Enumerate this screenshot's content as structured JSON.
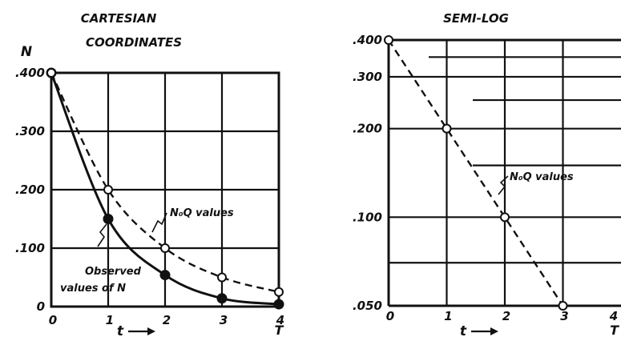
{
  "chart_data": [
    {
      "type": "line",
      "title": "CARTESIAN\nCOORDINATES",
      "xlabel": "t",
      "ylabel": "N",
      "xlim": [
        0,
        4
      ],
      "ylim": [
        0,
        0.4
      ],
      "x_ticks": [
        0,
        1,
        2,
        3,
        4
      ],
      "x_tick_labels": [
        "0",
        "1",
        "2",
        "3",
        "4"
      ],
      "y_ticks": [
        0,
        0.1,
        0.2,
        0.3,
        0.4
      ],
      "y_tick_labels": [
        "0",
        ".100",
        ".200",
        ".300",
        ".400"
      ],
      "x_extra_label": "T",
      "grid": true,
      "series": [
        {
          "name": "Observed values of N",
          "style": "solid",
          "marker": "filled",
          "x": [
            0,
            1,
            2,
            3,
            4
          ],
          "y": [
            0.4,
            0.15,
            0.054,
            0.014,
            0.004
          ]
        },
        {
          "name": "NoQ values",
          "style": "dashed",
          "marker": "open",
          "x": [
            0,
            1,
            2,
            3,
            4
          ],
          "y": [
            0.4,
            0.2,
            0.1,
            0.05,
            0.025
          ]
        }
      ],
      "annotations": [
        {
          "text": "N₀Q values"
        },
        {
          "text": "Observed\nvalues of N"
        }
      ]
    },
    {
      "type": "line",
      "title": "SEMI-LOG",
      "xlabel": "t",
      "ylabel": "",
      "xlim": [
        0,
        4
      ],
      "ylim": [
        0.05,
        0.4
      ],
      "yscale": "log",
      "x_ticks": [
        0,
        1,
        2,
        3,
        4
      ],
      "x_tick_labels": [
        "0",
        "1",
        "2",
        "3",
        "4"
      ],
      "y_ticks": [
        0.05,
        0.1,
        0.2,
        0.3,
        0.4
      ],
      "y_tick_labels": [
        ".050",
        ".100",
        ".200",
        ".300",
        ".400"
      ],
      "x_extra_label": "T",
      "grid": true,
      "series": [
        {
          "name": "NoQ values",
          "style": "dashed",
          "marker": "open",
          "x": [
            0,
            1,
            2,
            3
          ],
          "y": [
            0.4,
            0.2,
            0.1,
            0.05
          ]
        }
      ],
      "annotations": [
        {
          "text": "N₀Q values"
        }
      ]
    }
  ]
}
